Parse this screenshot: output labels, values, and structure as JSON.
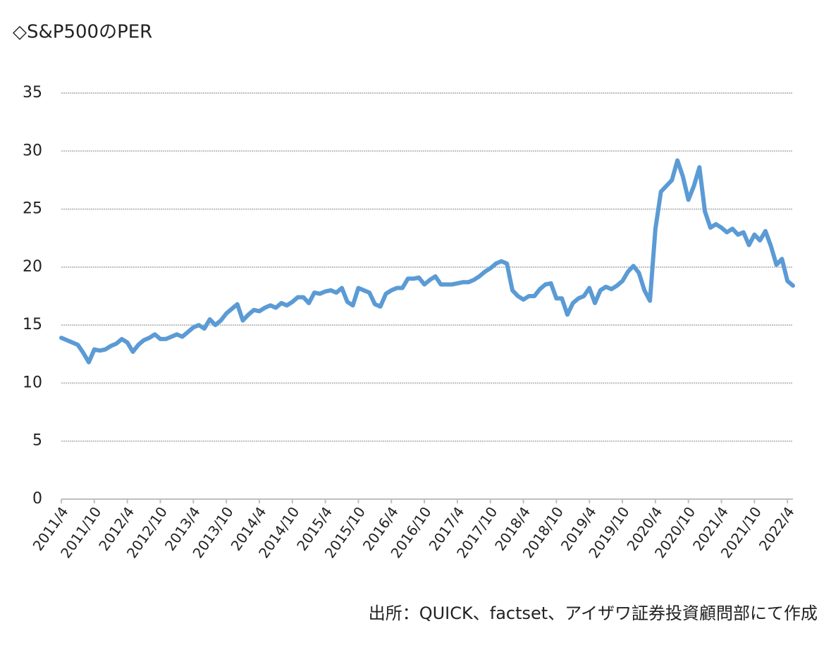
{
  "chart_data": {
    "type": "line",
    "title": "◇S&P500のPER",
    "source": "出所：QUICK、factset、アイザワ証券投資顧問部にて作成",
    "categories": [
      "2011/4",
      null,
      null,
      null,
      null,
      null,
      "2011/10",
      null,
      null,
      null,
      null,
      null,
      "2012/4",
      null,
      null,
      null,
      null,
      null,
      "2012/10",
      null,
      null,
      null,
      null,
      null,
      "2013/4",
      null,
      null,
      null,
      null,
      null,
      "2013/10",
      null,
      null,
      null,
      null,
      null,
      "2014/4",
      null,
      null,
      null,
      null,
      null,
      "2014/10",
      null,
      null,
      null,
      null,
      null,
      "2015/4",
      null,
      null,
      null,
      null,
      null,
      "2015/10",
      null,
      null,
      null,
      null,
      null,
      "2016/4",
      null,
      null,
      null,
      null,
      null,
      "2016/10",
      null,
      null,
      null,
      null,
      null,
      "2017/4",
      null,
      null,
      null,
      null,
      null,
      "2017/10",
      null,
      null,
      null,
      null,
      null,
      "2018/4",
      null,
      null,
      null,
      null,
      null,
      "2018/10",
      null,
      null,
      null,
      null,
      null,
      "2019/4",
      null,
      null,
      null,
      null,
      null,
      "2019/10",
      null,
      null,
      null,
      null,
      null,
      "2020/4",
      null,
      null,
      null,
      null,
      null,
      "2020/10",
      null,
      null,
      null,
      null,
      null,
      "2021/4",
      null,
      null,
      null,
      null,
      null,
      "2021/10",
      null,
      null,
      null,
      null,
      null,
      "2022/4",
      null
    ],
    "series": [
      {
        "color": "#5b9bd5",
        "values": [
          13.9,
          13.7,
          13.5,
          13.3,
          12.6,
          11.8,
          12.9,
          12.8,
          12.9,
          13.2,
          13.4,
          13.8,
          13.5,
          12.7,
          13.3,
          13.7,
          13.9,
          14.2,
          13.8,
          13.8,
          14.0,
          14.2,
          14.0,
          14.4,
          14.8,
          15.0,
          14.7,
          15.5,
          15.0,
          15.4,
          16.0,
          16.4,
          16.8,
          15.4,
          15.9,
          16.3,
          16.2,
          16.5,
          16.7,
          16.5,
          16.9,
          16.7,
          17.0,
          17.4,
          17.4,
          16.9,
          17.8,
          17.7,
          17.9,
          18.0,
          17.8,
          18.2,
          17.0,
          16.7,
          18.2,
          18.0,
          17.8,
          16.8,
          16.6,
          17.7,
          18.0,
          18.2,
          18.2,
          19.0,
          19.0,
          19.1,
          18.5,
          18.9,
          19.2,
          18.5,
          18.5,
          18.5,
          18.6,
          18.7,
          18.7,
          18.9,
          19.2,
          19.6,
          19.9,
          20.3,
          20.5,
          20.3,
          18.0,
          17.5,
          17.2,
          17.5,
          17.5,
          18.1,
          18.5,
          18.6,
          17.3,
          17.3,
          15.9,
          16.9,
          17.3,
          17.5,
          18.2,
          16.9,
          18.0,
          18.3,
          18.1,
          18.4,
          18.8,
          19.6,
          20.1,
          19.5,
          18.0,
          17.1,
          23.3,
          26.5,
          27.0,
          27.5,
          29.2,
          27.8,
          25.8,
          27.0,
          28.6,
          24.8,
          23.4,
          23.7,
          23.4,
          23.0,
          23.3,
          22.8,
          23.0,
          21.9,
          22.8,
          22.3,
          23.1,
          21.8,
          20.2,
          20.7,
          18.8,
          18.4
        ]
      }
    ],
    "ylim": [
      0,
      35
    ],
    "yticks": [
      0,
      5,
      10,
      15,
      20,
      25,
      30,
      35
    ],
    "grid": true
  }
}
